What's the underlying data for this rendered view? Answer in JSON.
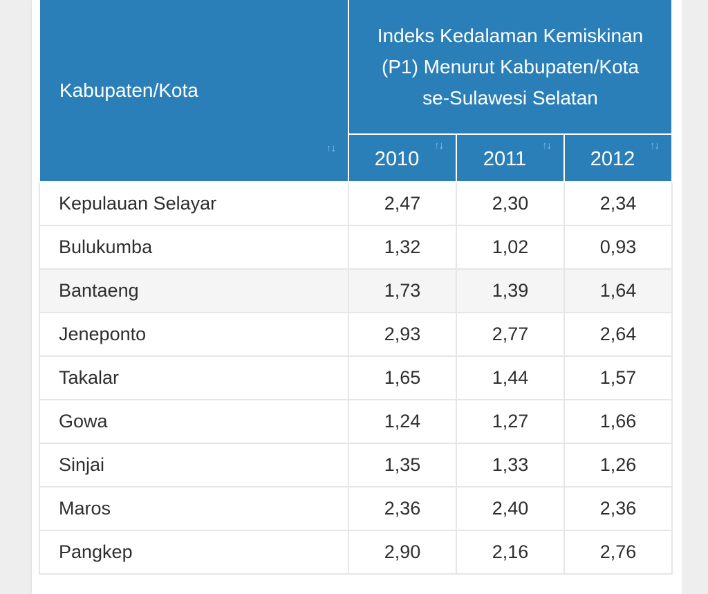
{
  "table": {
    "name_header": "Kabupaten/Kota",
    "group_header": "Indeks Kedalaman Kemiskinan (P1) Menurut Kabupaten/Kota se-Sulawesi Selatan",
    "years": [
      "2010",
      "2011",
      "2012"
    ],
    "sort_icon": "sort-arrows-icon",
    "header_color": "#2a7fb8",
    "rows": [
      {
        "name": "Kepulauan Selayar",
        "values": [
          "2,47",
          "2,30",
          "2,34"
        ]
      },
      {
        "name": "Bulukumba",
        "values": [
          "1,32",
          "1,02",
          "0,93"
        ]
      },
      {
        "name": "Bantaeng",
        "values": [
          "1,73",
          "1,39",
          "1,64"
        ]
      },
      {
        "name": "Jeneponto",
        "values": [
          "2,93",
          "2,77",
          "2,64"
        ]
      },
      {
        "name": "Takalar",
        "values": [
          "1,65",
          "1,44",
          "1,57"
        ]
      },
      {
        "name": "Gowa",
        "values": [
          "1,24",
          "1,27",
          "1,66"
        ]
      },
      {
        "name": "Sinjai",
        "values": [
          "1,35",
          "1,33",
          "1,26"
        ]
      },
      {
        "name": "Maros",
        "values": [
          "2,36",
          "2,40",
          "2,36"
        ]
      },
      {
        "name": "Pangkep",
        "values": [
          "2,90",
          "2,16",
          "2,76"
        ]
      }
    ]
  }
}
